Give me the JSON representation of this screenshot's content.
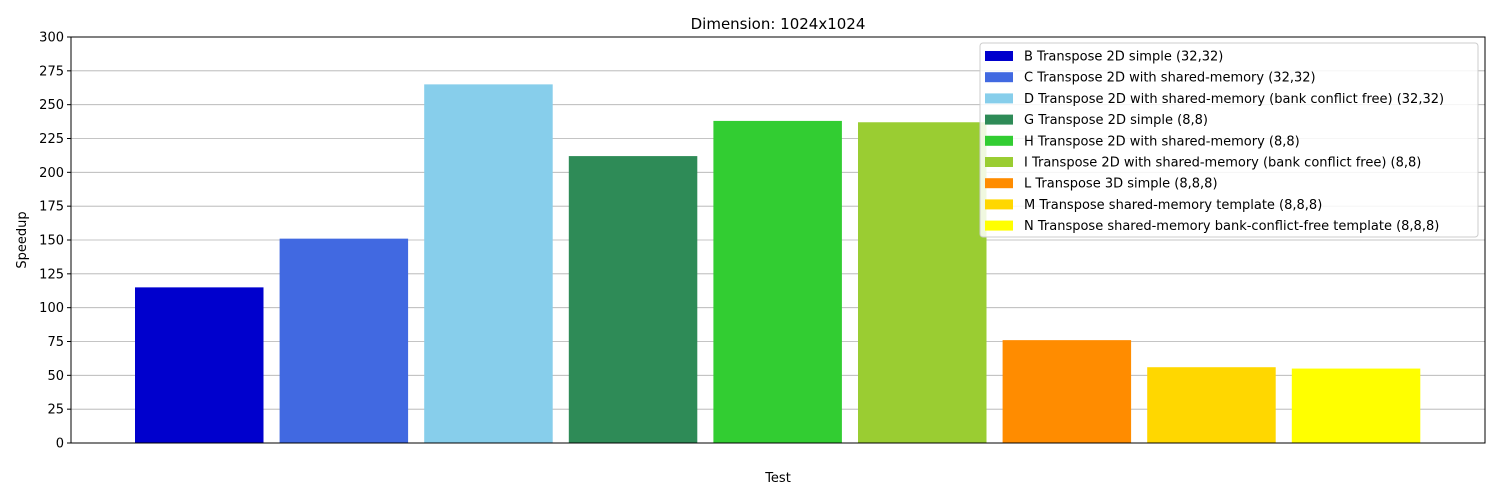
{
  "chart_data": {
    "type": "bar",
    "title": "Dimension: 1024x1024",
    "xlabel": "Test",
    "ylabel": "Speedup",
    "ylim": [
      0,
      300
    ],
    "yticks": [
      0,
      25,
      50,
      75,
      100,
      125,
      150,
      175,
      200,
      225,
      250,
      275,
      300
    ],
    "grid": "y",
    "legend_position": "top-right",
    "series": [
      {
        "name": "B Transpose 2D simple (32,32)",
        "value": 115,
        "color": "#0000cd"
      },
      {
        "name": "C Transpose 2D with shared-memory (32,32)",
        "value": 151,
        "color": "#4169e1"
      },
      {
        "name": "D Transpose 2D with shared-memory (bank conflict free) (32,32)",
        "value": 265,
        "color": "#87ceeb"
      },
      {
        "name": "G Transpose 2D simple (8,8)",
        "value": 212,
        "color": "#2e8b57"
      },
      {
        "name": "H Transpose 2D with shared-memory (8,8)",
        "value": 238,
        "color": "#32cd32"
      },
      {
        "name": "I Transpose 2D with shared-memory (bank conflict free) (8,8)",
        "value": 237,
        "color": "#9acd32"
      },
      {
        "name": "L Transpose 3D simple (8,8,8)",
        "value": 76,
        "color": "#ff8c00"
      },
      {
        "name": "M Transpose shared-memory template (8,8,8)",
        "value": 56,
        "color": "#ffd700"
      },
      {
        "name": "N Transpose shared-memory bank-conflict-free template (8,8,8)",
        "value": 55,
        "color": "#ffff00"
      }
    ]
  }
}
